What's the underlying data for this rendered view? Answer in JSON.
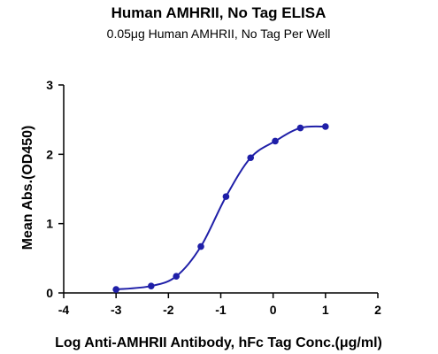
{
  "chart_data": {
    "type": "scatter",
    "title": "Human AMHRII, No Tag ELISA",
    "subtitle": "0.05μg Human AMHRII, No Tag Per Well",
    "xlabel": "Log Anti-AMHRII Antibody, hFc Tag Conc.(μg/ml)",
    "ylabel": "Mean Abs.(OD450)",
    "xlim": [
      -4,
      2
    ],
    "ylim": [
      0,
      3
    ],
    "x_ticks": [
      "-4",
      "-3",
      "-2",
      "-1",
      "0",
      "1",
      "2"
    ],
    "y_ticks": [
      "0",
      "1",
      "2",
      "3"
    ],
    "grid": false,
    "series": [
      {
        "x": [
          -3.0,
          -2.33,
          -1.85,
          -1.38,
          -0.9,
          -0.43,
          0.04,
          0.52,
          1.0
        ],
        "values": [
          0.05,
          0.1,
          0.24,
          0.67,
          1.39,
          1.95,
          2.19,
          2.38,
          2.4
        ],
        "color": "#1f1fa8"
      }
    ]
  }
}
